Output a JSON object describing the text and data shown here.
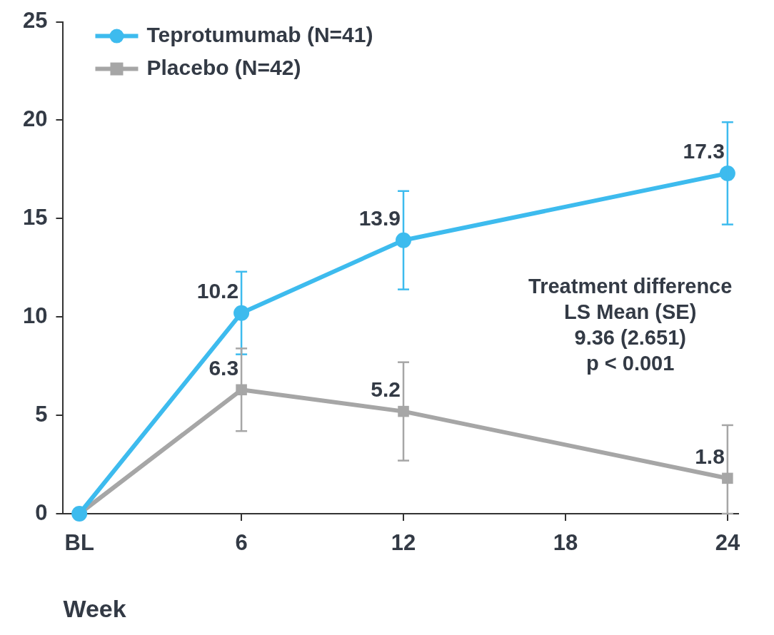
{
  "chart_data": {
    "type": "line",
    "xlabel": "Week",
    "x": [
      0,
      6,
      12,
      24
    ],
    "xlim": [
      -0.6,
      24.4
    ],
    "xticks": [
      {
        "value": 0,
        "label": "BL"
      },
      6,
      12,
      18,
      24
    ],
    "ylim": [
      0,
      25
    ],
    "yticks": [
      0,
      5,
      10,
      15,
      20,
      25
    ],
    "grid": false,
    "legend": "top left",
    "line_style": "solid",
    "series": [
      {
        "name": "Teprotumumab (N=41)",
        "color": "#3dbbee",
        "marker": "circle",
        "values": [
          0,
          10.2,
          13.9,
          17.3
        ],
        "errors": [
          null,
          2.1,
          2.5,
          2.6
        ],
        "value_labels": [
          null,
          "10.2",
          "13.9",
          "17.3"
        ]
      },
      {
        "name": "Placebo (N=42)",
        "color": "#a6a6a6",
        "marker": "square",
        "values": [
          0,
          6.3,
          5.2,
          1.8
        ],
        "errors": [
          null,
          2.1,
          2.5,
          [
            0,
            4.5
          ]
        ],
        "value_labels": [
          null,
          "6.3",
          "5.2",
          "1.8"
        ]
      }
    ],
    "annotations": [
      "Treatment difference",
      "LS Mean (SE)",
      "9.36 (2.651)",
      "p < 0.001"
    ]
  }
}
